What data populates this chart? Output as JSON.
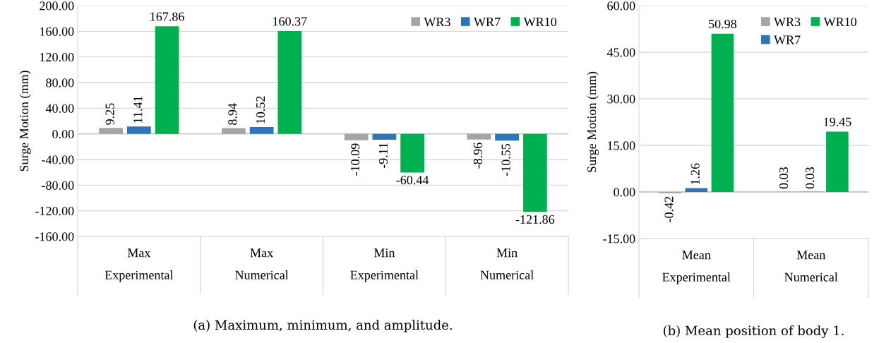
{
  "chart_data": [
    {
      "type": "bar",
      "ylabel": "Surge Motion (mm)",
      "categories": [
        "Max\nExperimental",
        "Max\nNumerical",
        "Min\nExperimental",
        "Min\nNumerical"
      ],
      "series": [
        {
          "name": "WR3",
          "color": "#a5a5a5",
          "values": [
            9.25,
            8.94,
            -10.09,
            -8.96
          ],
          "value_labels": [
            "9.25",
            "8.94",
            "-10.09",
            "-8.96"
          ]
        },
        {
          "name": "WR7",
          "color": "#2e75b6",
          "values": [
            11.41,
            10.52,
            -9.11,
            -10.55
          ],
          "value_labels": [
            "11.41",
            "10.52",
            "-9.11",
            "-10.55"
          ]
        },
        {
          "name": "WR10",
          "color": "#00b050",
          "values": [
            167.86,
            160.37,
            -60.44,
            -121.86
          ],
          "value_labels": [
            "167.86",
            "160.37",
            "-60.44",
            "-121.86"
          ]
        }
      ],
      "ylim": [
        -160,
        200
      ],
      "yticks": [
        {
          "value": -160,
          "label": "-160.00"
        },
        {
          "value": -120,
          "label": "-120.00"
        },
        {
          "value": -80,
          "label": "-80.00"
        },
        {
          "value": -40,
          "label": "-40.00"
        },
        {
          "value": 0,
          "label": "0.00"
        },
        {
          "value": 40,
          "label": "40.00"
        },
        {
          "value": 80,
          "label": "80.00"
        },
        {
          "value": 120,
          "label": "120.00"
        },
        {
          "value": 160,
          "label": "160.00"
        },
        {
          "value": 200,
          "label": "200.00"
        }
      ],
      "grid": "y",
      "legend": "top right",
      "annotations": [
        "(a) Maximum, minimum, and amplitude."
      ]
    },
    {
      "type": "bar",
      "ylabel": "Surge Motion (mm)",
      "categories": [
        "Mean\nExperimental",
        "Mean\nNumerical"
      ],
      "series": [
        {
          "name": "WR3",
          "color": "#a5a5a5",
          "values": [
            -0.42,
            0.03
          ],
          "value_labels": [
            "-0.42",
            "0.03"
          ]
        },
        {
          "name": "WR7",
          "color": "#2e75b6",
          "values": [
            1.26,
            0.03
          ],
          "value_labels": [
            "1.26",
            "0.03"
          ]
        },
        {
          "name": "WR10",
          "color": "#00b050",
          "values": [
            50.98,
            19.45
          ],
          "value_labels": [
            "50.98",
            "19.45"
          ]
        }
      ],
      "ylim": [
        -15,
        60
      ],
      "yticks": [
        {
          "value": -15,
          "label": "-15.00"
        },
        {
          "value": 0,
          "label": "0.00"
        },
        {
          "value": 15,
          "label": "15.00"
        },
        {
          "value": 30,
          "label": "30.00"
        },
        {
          "value": 45,
          "label": "45.00"
        },
        {
          "value": 60,
          "label": "60.00"
        }
      ],
      "grid": "y",
      "legend": "top right",
      "annotations": [
        "(b) Mean position of body 1."
      ]
    }
  ]
}
